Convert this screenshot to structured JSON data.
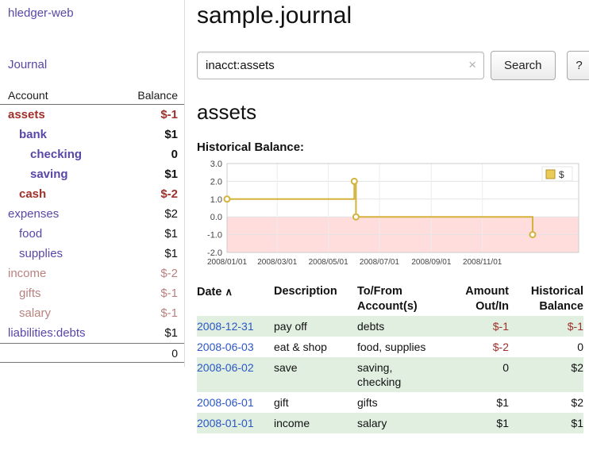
{
  "colors": {
    "purple_link": "#5a46a8",
    "negative_strong": "#a0302c",
    "negative_soft": "#b8827f",
    "date_link_blue": "#2a56c6",
    "row_stripe_green": "#e0efe0",
    "chart_line_gold": "#d4b23c",
    "chart_negative_region": "#ffdddd"
  },
  "sidebar": {
    "app_title": "hledger-web",
    "journal_link": "Journal",
    "accounts_table": {
      "account_header": "Account",
      "balance_header": "Balance",
      "rows": [
        {
          "name": "assets",
          "balance": "$-1"
        },
        {
          "name": "bank",
          "balance": "$1"
        },
        {
          "name": "checking",
          "balance": "0"
        },
        {
          "name": "saving",
          "balance": "$1"
        },
        {
          "name": "cash",
          "balance": "$-2"
        },
        {
          "name": "expenses",
          "balance": "$2"
        },
        {
          "name": "food",
          "balance": "$1"
        },
        {
          "name": "supplies",
          "balance": "$1"
        },
        {
          "name": "income",
          "balance": "$-2"
        },
        {
          "name": "gifts",
          "balance": "$-1"
        },
        {
          "name": "salary",
          "balance": "$-1"
        },
        {
          "name": "liabilities:debts",
          "balance": "$1"
        }
      ],
      "total": "0"
    }
  },
  "main": {
    "title": "sample.journal",
    "search": {
      "value": "inacct:assets",
      "clear_icon": "×",
      "button_label": "Search",
      "help_label": "?"
    },
    "account_heading": "assets",
    "register": {
      "headers": {
        "date": "Date",
        "sort_indicator": "∧",
        "description": "Description",
        "account_line1": "To/From",
        "account_line2": "Account(s)",
        "amount_line1": "Amount",
        "amount_line2": "Out/In",
        "balance_line1": "Historical",
        "balance_line2": "Balance"
      },
      "rows": [
        {
          "date": "2008-12-31",
          "description": "pay off",
          "accounts": "debts",
          "amount": "$-1",
          "balance": "$-1"
        },
        {
          "date": "2008-06-03",
          "description": "eat & shop",
          "accounts": "food, supplies",
          "amount": "$-2",
          "balance": "0"
        },
        {
          "date": "2008-06-02",
          "description": "save",
          "accounts": "saving,\nchecking",
          "amount": "0",
          "balance": "$2"
        },
        {
          "date": "2008-06-01",
          "description": "gift",
          "accounts": "gifts",
          "amount": "$1",
          "balance": "$2"
        },
        {
          "date": "2008-01-01",
          "description": "income",
          "accounts": "salary",
          "amount": "$1",
          "balance": "$1"
        }
      ]
    }
  },
  "chart_data": {
    "type": "line",
    "title": "Historical Balance:",
    "legend": [
      {
        "label": "$",
        "color": "#eacb56"
      }
    ],
    "y_ticks": [
      "3.0",
      "2.0",
      "1.0",
      "0.0",
      "-1.0",
      "-2.0"
    ],
    "y_range": [
      -2,
      3
    ],
    "x_ticks": [
      {
        "label": "2008/01/01",
        "day": 0
      },
      {
        "label": "2008/03/01",
        "day": 60
      },
      {
        "label": "2008/05/01",
        "day": 121
      },
      {
        "label": "2008/07/01",
        "day": 182
      },
      {
        "label": "2008/09/01",
        "day": 244
      },
      {
        "label": "2008/11/01",
        "day": 305
      }
    ],
    "x_range_days": [
      0,
      420
    ],
    "grid": true,
    "legend_position": "top-right",
    "series": [
      {
        "name": "$",
        "color": "#d4b23c",
        "step": true,
        "points": [
          {
            "date": "2008-01-01",
            "day": 0,
            "value": 1
          },
          {
            "date": "2008-06-01",
            "day": 152,
            "value": 2
          },
          {
            "date": "2008-06-03",
            "day": 154,
            "value": 0
          },
          {
            "date": "2008-12-31",
            "day": 365,
            "value": -1
          }
        ]
      }
    ]
  }
}
